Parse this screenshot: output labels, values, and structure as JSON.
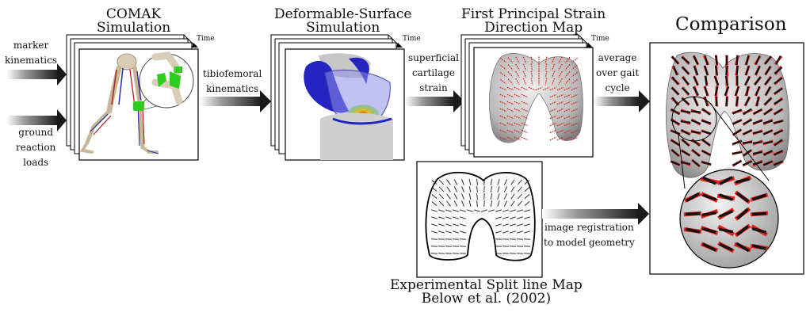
{
  "titles": {
    "comak_line1": "COMAK",
    "comak_line2": "Simulation",
    "dss_line1": "Deformable-Surface",
    "dss_line2": "Simulation",
    "fps_line1": "First Principal Strain",
    "fps_line2": "Direction Map",
    "comparison": "Comparison",
    "exp_line1": "Experimental Split line Map",
    "exp_line2": "Below et al. (2002)"
  },
  "inputs": {
    "marker_line1": "marker",
    "marker_line2": "kinematics",
    "ground_line1": "ground",
    "ground_line2": "reaction",
    "ground_line3": "loads"
  },
  "arrows": {
    "tibio_line1": "tibiofemoral",
    "tibio_line2": "kinematics",
    "superficial_line1": "superficial",
    "superficial_line2": "cartilage",
    "superficial_line3": "strain",
    "average_line1": "average",
    "average_line2": "over gait",
    "average_line3": "cycle",
    "registration_line1": "image registration",
    "registration_line2": "to model geometry"
  },
  "stack_axis_label": "Time",
  "colors": {
    "arrow_dark": "#1a1a1a",
    "strain_red": "#e0231c",
    "muscle_blue": "#2a2aa8",
    "implant_green": "#2ecc1f",
    "bone": "#d8d8d8"
  }
}
